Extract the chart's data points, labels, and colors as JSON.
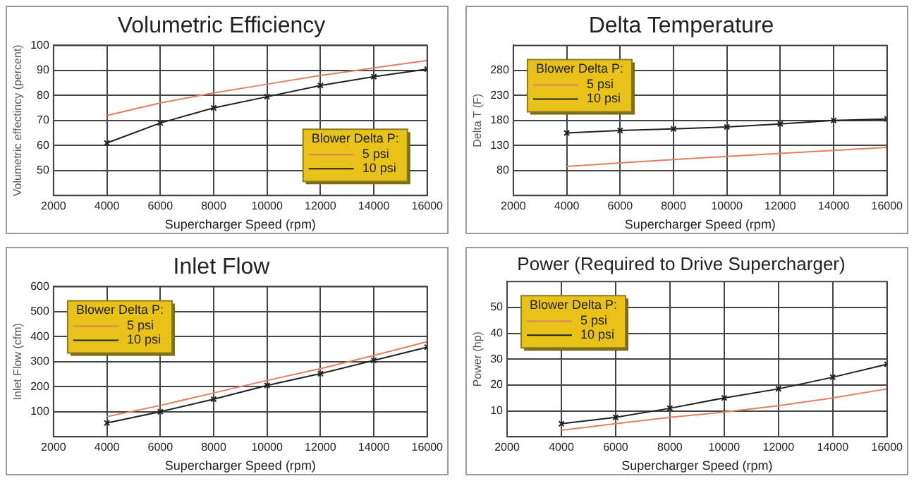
{
  "chart_data": [
    {
      "type": "line",
      "title": "Volumetric Efficiency",
      "xlabel": "Supercharger Speed (rpm)",
      "ylabel": "Volumetric effectincy (percent)",
      "legend_title": "Blower Delta P:",
      "legend": "bottom right",
      "grid": true,
      "line_style": "solid",
      "x": [
        4000,
        6000,
        8000,
        10000,
        12000,
        14000,
        16000
      ],
      "xlim": [
        2000,
        16000
      ],
      "xticks": [
        2000,
        4000,
        6000,
        8000,
        10000,
        12000,
        14000,
        16000
      ],
      "ylim": [
        40,
        100
      ],
      "yticks": [
        50,
        60,
        70,
        80,
        90,
        100
      ],
      "series": [
        {
          "name": "5 psi",
          "color": "#e08060",
          "marker": "none",
          "values": [
            72,
            77,
            81,
            84.5,
            88,
            91,
            94
          ]
        },
        {
          "name": "10 psi",
          "color": "#202020",
          "marker": "cross",
          "values": [
            61,
            69,
            75,
            79.5,
            84,
            87.5,
            90.5
          ]
        }
      ]
    },
    {
      "type": "line",
      "title": "Delta Temperature",
      "xlabel": "Supercharger Speed (rpm)",
      "ylabel": "Delta T (F)",
      "legend_title": "Blower Delta P:",
      "legend": "top left",
      "grid": true,
      "line_style": "solid",
      "x": [
        4000,
        6000,
        8000,
        10000,
        12000,
        14000,
        16000
      ],
      "xlim": [
        2000,
        16000
      ],
      "xticks": [
        2000,
        4000,
        6000,
        8000,
        10000,
        12000,
        14000,
        16000
      ],
      "ylim": [
        30,
        330
      ],
      "yticks": [
        80,
        130,
        180,
        230,
        280
      ],
      "series": [
        {
          "name": "5 psi",
          "color": "#e08060",
          "marker": "none",
          "values": [
            88,
            95,
            102,
            108,
            114,
            120,
            126
          ]
        },
        {
          "name": "10 psi",
          "color": "#202020",
          "marker": "cross",
          "values": [
            155,
            160,
            163,
            167,
            173,
            180,
            183
          ]
        }
      ]
    },
    {
      "type": "line",
      "title": "Inlet Flow",
      "xlabel": "Supercharger Speed (rpm)",
      "ylabel": "Inlet Flow (cfm)",
      "legend_title": "Blower Delta P:",
      "legend": "top left",
      "grid": true,
      "line_style": "solid",
      "x": [
        4000,
        6000,
        8000,
        10000,
        12000,
        14000,
        16000
      ],
      "xlim": [
        2000,
        16000
      ],
      "xticks": [
        2000,
        4000,
        6000,
        8000,
        10000,
        12000,
        14000,
        16000
      ],
      "ylim": [
        0,
        600
      ],
      "yticks": [
        100,
        200,
        300,
        400,
        500,
        600
      ],
      "series": [
        {
          "name": "5 psi",
          "color": "#e08060",
          "marker": "none",
          "values": [
            80,
            125,
            175,
            225,
            272,
            325,
            380
          ]
        },
        {
          "name": "10 psi",
          "color": "#202020",
          "marker": "cross",
          "values": [
            55,
            100,
            150,
            205,
            252,
            305,
            358
          ]
        }
      ]
    },
    {
      "type": "line",
      "title": "Power (Required to Drive Supercharger)",
      "xlabel": "Supercharger Speed (rpm)",
      "ylabel": "Power (hp)",
      "legend_title": "Blower Delta P:",
      "legend": "top left",
      "grid": true,
      "line_style": "solid",
      "x": [
        4000,
        6000,
        8000,
        10000,
        12000,
        14000,
        16000
      ],
      "xlim": [
        2000,
        16000
      ],
      "xticks": [
        2000,
        4000,
        6000,
        8000,
        10000,
        12000,
        14000,
        16000
      ],
      "ylim": [
        0,
        60
      ],
      "yticks": [
        10,
        20,
        30,
        40,
        50
      ],
      "series": [
        {
          "name": "5 psi",
          "color": "#e08060",
          "marker": "none",
          "values": [
            2.5,
            5,
            7.5,
            9.5,
            12,
            15,
            18.5
          ]
        },
        {
          "name": "10 psi",
          "color": "#202020",
          "marker": "cross",
          "values": [
            5,
            7.5,
            11,
            15,
            18.5,
            23,
            28
          ]
        }
      ]
    }
  ]
}
